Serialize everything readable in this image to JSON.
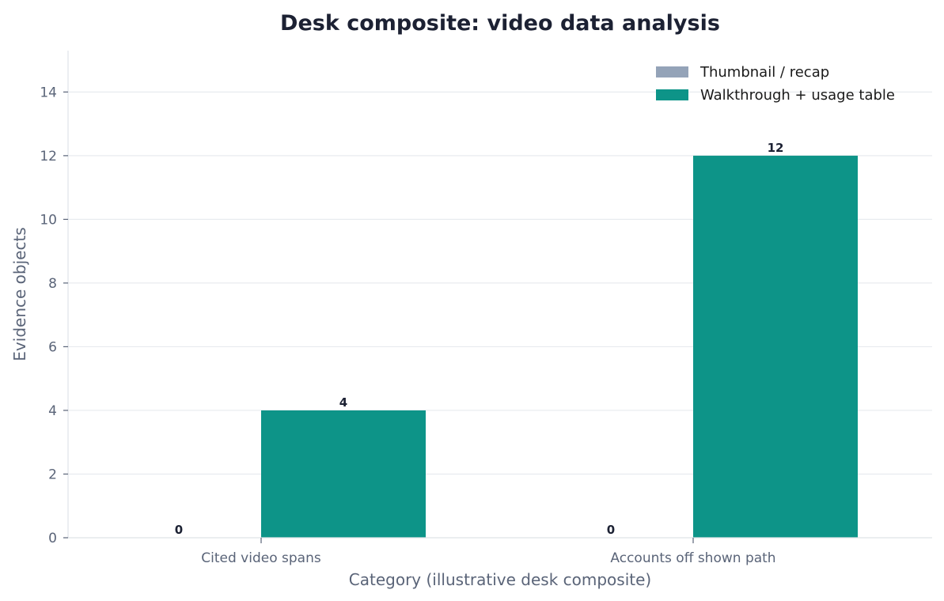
{
  "chart_data": {
    "type": "bar",
    "title": "Desk composite: video data analysis",
    "xlabel": "Category (illustrative desk composite)",
    "ylabel": "Evidence objects",
    "categories": [
      "Cited video spans",
      "Accounts off shown path"
    ],
    "series": [
      {
        "name": "Thumbnail / recap",
        "values": [
          0,
          0
        ],
        "color": "#94a3b8"
      },
      {
        "name": "Walkthrough + usage table",
        "values": [
          4,
          12
        ],
        "color": "#0d9488"
      }
    ],
    "ylim": [
      0,
      15.3
    ],
    "yticks": [
      0,
      2,
      4,
      6,
      8,
      10,
      12,
      14
    ],
    "grid": true,
    "legend": "top-right"
  }
}
